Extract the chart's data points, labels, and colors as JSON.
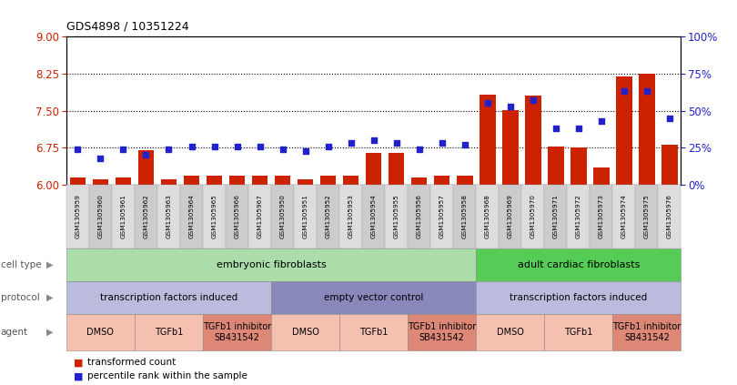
{
  "title": "GDS4898 / 10351224",
  "samples": [
    "GSM1305959",
    "GSM1305960",
    "GSM1305961",
    "GSM1305962",
    "GSM1305963",
    "GSM1305964",
    "GSM1305965",
    "GSM1305966",
    "GSM1305967",
    "GSM1305950",
    "GSM1305951",
    "GSM1305952",
    "GSM1305953",
    "GSM1305954",
    "GSM1305955",
    "GSM1305956",
    "GSM1305957",
    "GSM1305958",
    "GSM1305968",
    "GSM1305969",
    "GSM1305970",
    "GSM1305971",
    "GSM1305972",
    "GSM1305973",
    "GSM1305974",
    "GSM1305975",
    "GSM1305976"
  ],
  "red_values": [
    6.15,
    6.12,
    6.15,
    6.7,
    6.12,
    6.18,
    6.18,
    6.18,
    6.18,
    6.18,
    6.12,
    6.18,
    6.18,
    6.65,
    6.65,
    6.15,
    6.18,
    6.18,
    7.82,
    7.52,
    7.8,
    6.78,
    6.75,
    6.35,
    8.2,
    8.25,
    6.82
  ],
  "blue_values": [
    24,
    18,
    24,
    20,
    24,
    26,
    26,
    26,
    26,
    24,
    23,
    26,
    28,
    30,
    28,
    24,
    28,
    27,
    55,
    53,
    57,
    38,
    38,
    43,
    63,
    63,
    45
  ],
  "ylim": [
    6,
    9
  ],
  "y2lim": [
    0,
    100
  ],
  "yticks": [
    6,
    6.75,
    7.5,
    8.25,
    9
  ],
  "y2ticks": [
    0,
    25,
    50,
    75,
    100
  ],
  "hlines": [
    6.75,
    7.5,
    8.25
  ],
  "bar_color": "#cc2200",
  "dot_color": "#2222cc",
  "cell_type_groups": [
    {
      "label": "embryonic fibroblasts",
      "start": 0,
      "end": 18,
      "color": "#aaddaa"
    },
    {
      "label": "adult cardiac fibroblasts",
      "start": 18,
      "end": 27,
      "color": "#55cc55"
    }
  ],
  "protocol_groups": [
    {
      "label": "transcription factors induced",
      "start": 0,
      "end": 9,
      "color": "#bbbbdd"
    },
    {
      "label": "empty vector control",
      "start": 9,
      "end": 18,
      "color": "#8888bb"
    },
    {
      "label": "transcription factors induced",
      "start": 18,
      "end": 27,
      "color": "#bbbbdd"
    }
  ],
  "agent_groups": [
    {
      "label": "DMSO",
      "start": 0,
      "end": 3,
      "color": "#f5c0b0"
    },
    {
      "label": "TGFb1",
      "start": 3,
      "end": 6,
      "color": "#f5c0b0"
    },
    {
      "label": "TGFb1 inhibitor\nSB431542",
      "start": 6,
      "end": 9,
      "color": "#dd8877"
    },
    {
      "label": "DMSO",
      "start": 9,
      "end": 12,
      "color": "#f5c0b0"
    },
    {
      "label": "TGFb1",
      "start": 12,
      "end": 15,
      "color": "#f5c0b0"
    },
    {
      "label": "TGFb1 inhibitor\nSB431542",
      "start": 15,
      "end": 18,
      "color": "#dd8877"
    },
    {
      "label": "DMSO",
      "start": 18,
      "end": 21,
      "color": "#f5c0b0"
    },
    {
      "label": "TGFb1",
      "start": 21,
      "end": 24,
      "color": "#f5c0b0"
    },
    {
      "label": "TGFb1 inhibitor\nSB431542",
      "start": 24,
      "end": 27,
      "color": "#dd8877"
    }
  ],
  "legend_labels": [
    "transformed count",
    "percentile rank within the sample"
  ],
  "row_labels": [
    "cell type",
    "protocol",
    "agent"
  ],
  "bar_width": 0.7
}
